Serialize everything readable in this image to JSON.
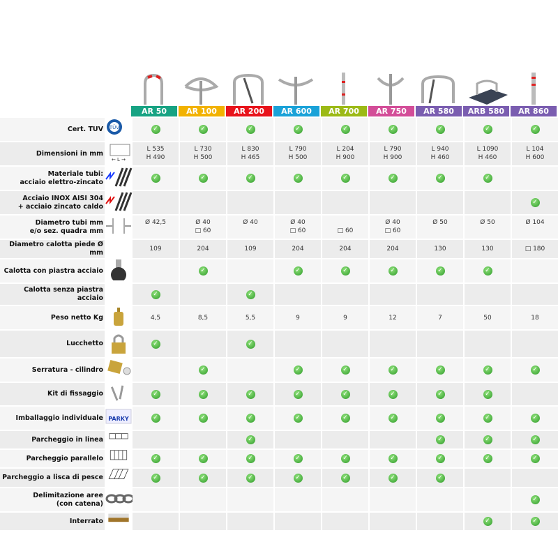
{
  "colors": {
    "check": "#3aa832",
    "row_light": "#f5f5f5",
    "row_dark": "#ececec"
  },
  "products": [
    {
      "name": "AR 50",
      "color": "#17a383"
    },
    {
      "name": "AR 100",
      "color": "#f2b200"
    },
    {
      "name": "AR 200",
      "color": "#e8131b"
    },
    {
      "name": "AR 600",
      "color": "#1aa2d8"
    },
    {
      "name": "AR 700",
      "color": "#9cba16"
    },
    {
      "name": "AR 750",
      "color": "#d34d98"
    },
    {
      "name": "AR 580",
      "color": "#7a5db0"
    },
    {
      "name": "ARB 580",
      "color": "#7a5db0"
    },
    {
      "name": "AR 860",
      "color": "#7a5db0"
    }
  ],
  "rows": [
    {
      "label": [
        "Cert. TUV"
      ],
      "icon": "tuv-certification-icon",
      "h": 33,
      "cells": [
        "check",
        "check",
        "check",
        "check",
        "check",
        "check",
        "check",
        "check",
        "check"
      ]
    },
    {
      "label": [
        "Dimensioni in mm"
      ],
      "icon": "dimensions-icon",
      "h": 32,
      "cells": [
        [
          "L 535",
          "H 490"
        ],
        [
          "L 730",
          "H 500"
        ],
        [
          "L 830",
          "H 465"
        ],
        [
          "L 790",
          "H 500"
        ],
        [
          "L 204",
          "H 900"
        ],
        [
          "L 790",
          "H 900"
        ],
        [
          "L 940",
          "H 460"
        ],
        [
          "L 1090",
          "H 460"
        ],
        [
          "L 104",
          "H 600"
        ]
      ]
    },
    {
      "label": [
        "Materiale tubi:",
        "acciaio elettro-zincato"
      ],
      "icon": "galvanized-tubes-icon",
      "h": 30,
      "cells": [
        "check",
        "check",
        "check",
        "check",
        "check",
        "check",
        "check",
        "check",
        ""
      ]
    },
    {
      "label": [
        "Acciaio INOX AISI 304",
        "+ acciaio zincato caldo"
      ],
      "icon": "stainless-tubes-icon",
      "h": 30,
      "cells": [
        "",
        "",
        "",
        "",
        "",
        "",
        "",
        "",
        "check"
      ]
    },
    {
      "label": [
        "Diametro tubi mm",
        "e/o sez. quadra mm"
      ],
      "icon": "diameter-icon",
      "h": 30,
      "cells": [
        [
          "Ø 42,5",
          ""
        ],
        [
          "Ø 40",
          "□ 60"
        ],
        [
          "Ø 40",
          ""
        ],
        [
          "Ø 40",
          "□ 60"
        ],
        [
          "",
          "□ 60"
        ],
        [
          "Ø 40",
          "□ 60"
        ],
        [
          "Ø 50",
          ""
        ],
        [
          "Ø 50",
          ""
        ],
        [
          "Ø 104",
          ""
        ]
      ]
    },
    {
      "label": [
        "Diametro calotta piede Ø mm"
      ],
      "icon": "",
      "h": 28,
      "cells": [
        "109",
        "204",
        "109",
        "204",
        "204",
        "204",
        "130",
        "130",
        "□ 180"
      ]
    },
    {
      "label": [
        "Calotta con piastra acciaio"
      ],
      "icon": "base-cap-icon",
      "h": 30,
      "cells": [
        "",
        "check",
        "",
        "check",
        "check",
        "check",
        "check",
        "check",
        ""
      ]
    },
    {
      "label": [
        "Calotta senza piastra acciaio"
      ],
      "icon": "",
      "h": 32,
      "cells": [
        "check",
        "",
        "check",
        "",
        "",
        "",
        "",
        "",
        ""
      ]
    },
    {
      "label": [
        "Peso netto Kg"
      ],
      "icon": "weight-icon",
      "h": 32,
      "cells": [
        "4,5",
        "8,5",
        "5,5",
        "9",
        "9",
        "12",
        "7",
        "50",
        "18"
      ]
    },
    {
      "label": [
        "Lucchetto"
      ],
      "icon": "padlock-icon",
      "h": 40,
      "cells": [
        "check",
        "",
        "check",
        "",
        "",
        "",
        "",
        "",
        ""
      ]
    },
    {
      "label": [
        "Serratura - cilindro"
      ],
      "icon": "cylinder-lock-icon",
      "h": 32,
      "cells": [
        "",
        "check",
        "",
        "check",
        "check",
        "check",
        "check",
        "check",
        "check"
      ]
    },
    {
      "label": [
        "Kit di fissaggio"
      ],
      "icon": "fixing-kit-icon",
      "h": 29,
      "cells": [
        "check",
        "check",
        "check",
        "check",
        "check",
        "check",
        "check",
        "check",
        ""
      ]
    },
    {
      "label": [
        "Imballaggio individuale"
      ],
      "icon": "packaging-icon",
      "h": 30,
      "cells": [
        "check",
        "check",
        "check",
        "check",
        "check",
        "check",
        "check",
        "check",
        "check"
      ]
    },
    {
      "label": [
        "Parcheggio in linea"
      ],
      "icon": "inline-parking-icon",
      "h": 22,
      "cells": [
        "",
        "",
        "check",
        "",
        "",
        "",
        "check",
        "check",
        "check"
      ]
    },
    {
      "label": [
        "Parcheggio parallelo"
      ],
      "icon": "parallel-parking-icon",
      "h": 22,
      "cells": [
        "check",
        "check",
        "check",
        "check",
        "check",
        "check",
        "check",
        "check",
        "check"
      ]
    },
    {
      "label": [
        "Parcheggio a lisca di pesce"
      ],
      "icon": "herringbone-parking-icon",
      "h": 23,
      "cells": [
        "check",
        "check",
        "check",
        "check",
        "check",
        "check",
        "check",
        "",
        ""
      ]
    },
    {
      "label": [
        "Delimitazione aree",
        "(con catena)"
      ],
      "icon": "chain-icon",
      "h": 30,
      "cells": [
        "",
        "",
        "",
        "",
        "",
        "",
        "",
        "",
        "check"
      ]
    },
    {
      "label": [
        "Interrato"
      ],
      "icon": "underground-icon",
      "h": 22,
      "cells": [
        "",
        "",
        "",
        "",
        "",
        "",
        "",
        "check",
        "check"
      ]
    }
  ]
}
